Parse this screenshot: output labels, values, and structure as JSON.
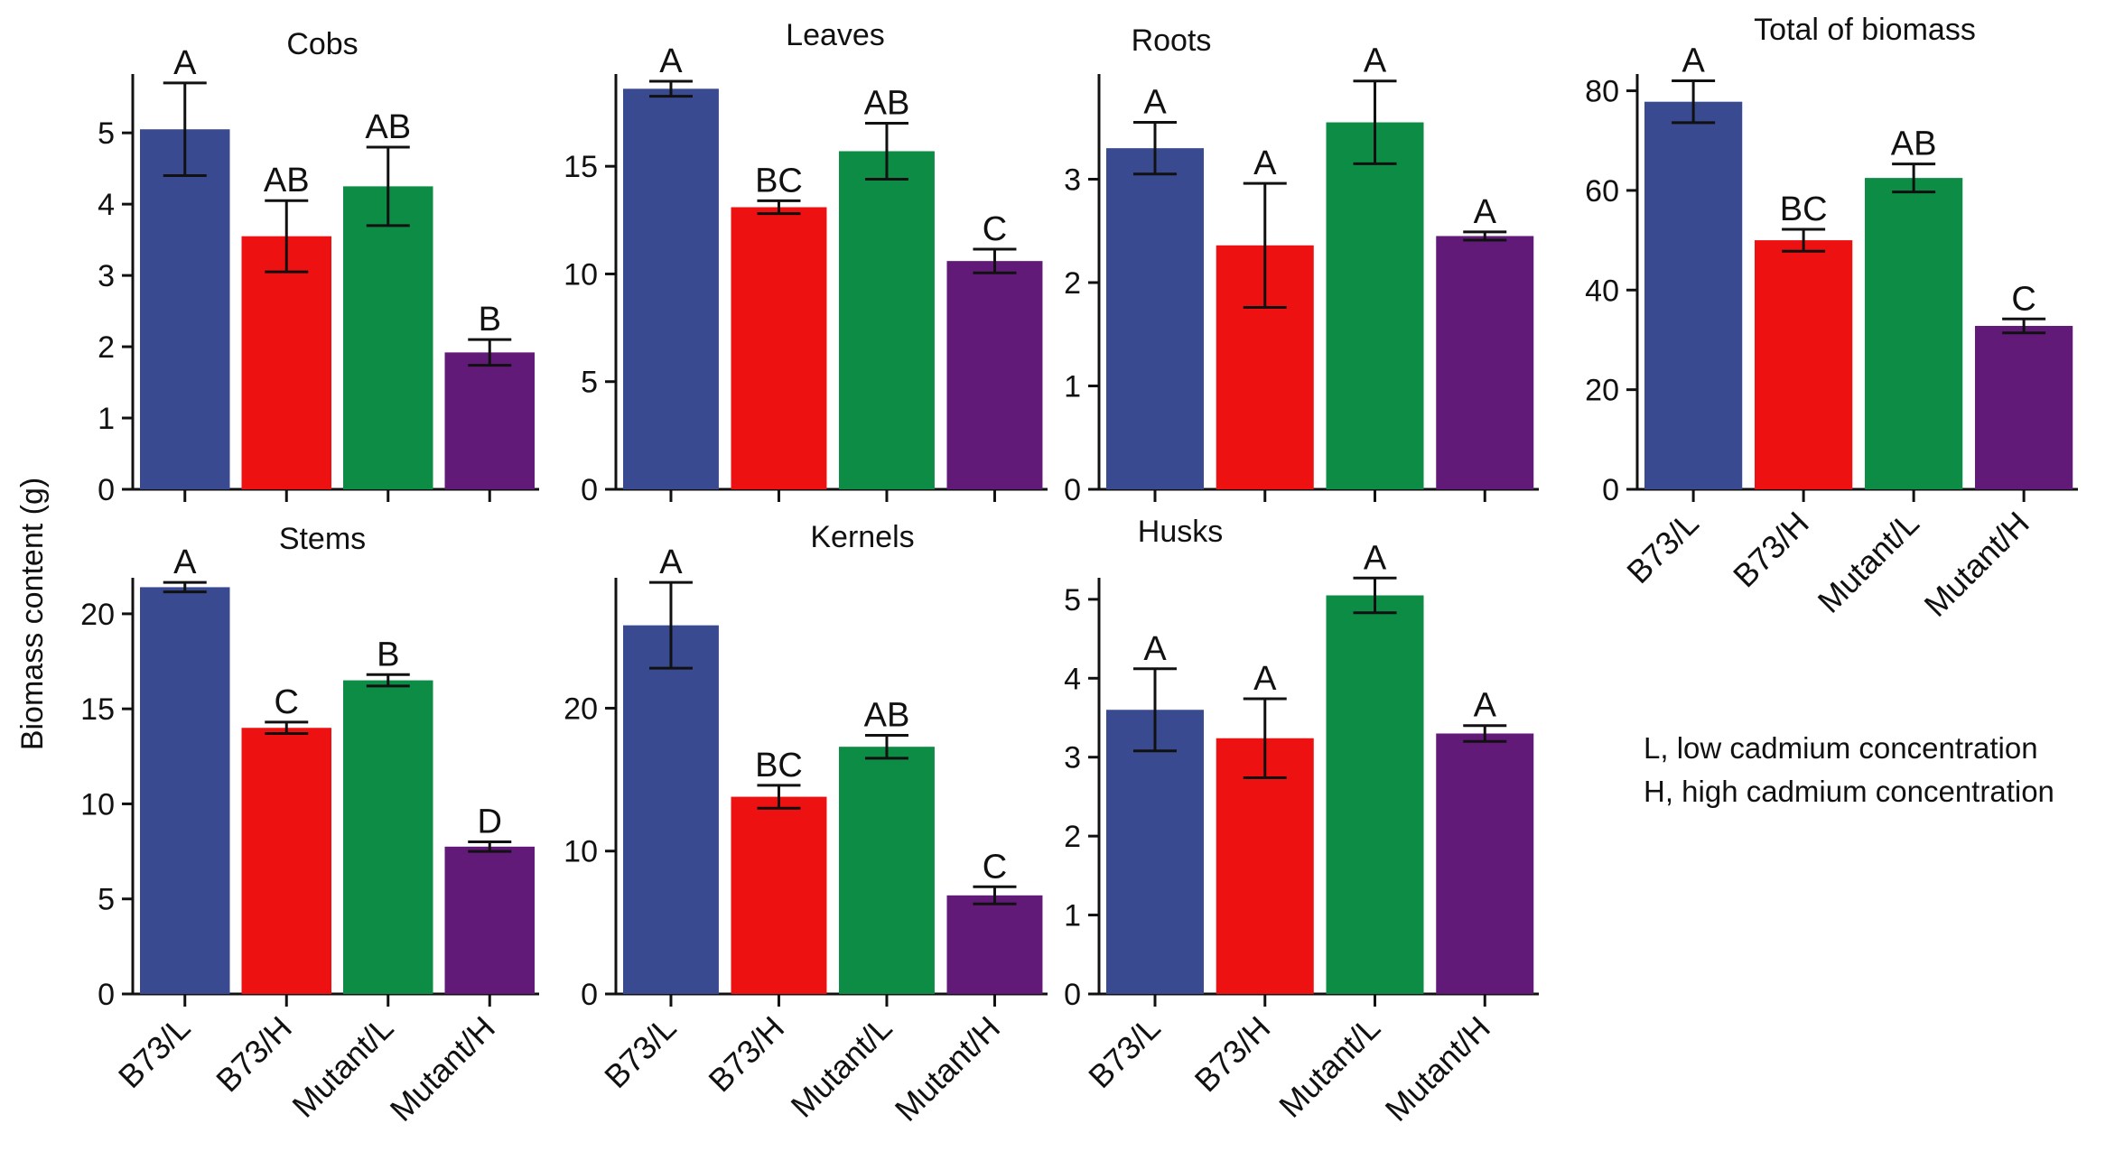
{
  "ylabel": "Biomass content (g)",
  "legend": [
    "L, low cadmium concentration",
    "H, high cadmium concentration"
  ],
  "colors": {
    "B73/L": "#3a4a91",
    "B73/H": "#ee1111",
    "Mutant/L": "#0c8c45",
    "Mutant/H": "#621a78"
  },
  "chart_data": [
    {
      "type": "bar",
      "title": "Cobs",
      "categories": [
        "B73/L",
        "B73/H",
        "Mutant/L",
        "Mutant/H"
      ],
      "values": [
        5.05,
        3.55,
        4.25,
        1.92
      ],
      "errors": [
        0.65,
        0.5,
        0.55,
        0.18
      ],
      "significance": [
        "A",
        "AB",
        "AB",
        "B"
      ],
      "ylim": [
        0,
        5.8
      ],
      "yticks": [
        0,
        1,
        2,
        3,
        4,
        5
      ],
      "show_xticklabels": false
    },
    {
      "type": "bar",
      "title": "Leaves",
      "categories": [
        "B73/L",
        "B73/H",
        "Mutant/L",
        "Mutant/H"
      ],
      "values": [
        18.6,
        13.1,
        15.7,
        10.6
      ],
      "errors": [
        0.35,
        0.3,
        1.3,
        0.55
      ],
      "significance": [
        "A",
        "BC",
        "AB",
        "C"
      ],
      "ylim": [
        0,
        19.2
      ],
      "yticks": [
        0,
        5,
        10,
        15
      ],
      "show_xticklabels": false
    },
    {
      "type": "bar",
      "title": "Roots",
      "categories": [
        "B73/L",
        "B73/H",
        "Mutant/L",
        "Mutant/H"
      ],
      "values": [
        3.3,
        2.36,
        3.55,
        2.45
      ],
      "errors": [
        0.25,
        0.6,
        0.4,
        0.04
      ],
      "significance": [
        "A",
        "A",
        "A",
        "A"
      ],
      "ylim": [
        0,
        4.0
      ],
      "yticks": [
        0,
        1,
        2,
        3
      ],
      "show_xticklabels": false
    },
    {
      "type": "bar",
      "title": "Total  of  biomass",
      "categories": [
        "B73/L",
        "B73/H",
        "Mutant/L",
        "Mutant/H"
      ],
      "values": [
        77.8,
        50.0,
        62.5,
        32.8
      ],
      "errors": [
        4.2,
        2.2,
        2.8,
        1.4
      ],
      "significance": [
        "A",
        "BC",
        "AB",
        "C"
      ],
      "ylim": [
        0,
        83
      ],
      "yticks": [
        0,
        20,
        40,
        60,
        80
      ],
      "show_xticklabels": true
    },
    {
      "type": "bar",
      "title": "Stems",
      "categories": [
        "B73/L",
        "B73/H",
        "Mutant/L",
        "Mutant/H"
      ],
      "values": [
        21.4,
        14.0,
        16.5,
        7.75
      ],
      "errors": [
        0.25,
        0.3,
        0.3,
        0.25
      ],
      "significance": [
        "A",
        "C",
        "B",
        "D"
      ],
      "ylim": [
        0,
        21.8
      ],
      "yticks": [
        0,
        5,
        10,
        15,
        20
      ],
      "show_xticklabels": true
    },
    {
      "type": "bar",
      "title": "Kernels",
      "categories": [
        "B73/L",
        "B73/H",
        "Mutant/L",
        "Mutant/H"
      ],
      "values": [
        25.8,
        13.8,
        17.3,
        6.9
      ],
      "errors": [
        3.0,
        0.8,
        0.8,
        0.6
      ],
      "significance": [
        "A",
        "BC",
        "AB",
        "C"
      ],
      "ylim": [
        0,
        29.0
      ],
      "yticks": [
        0,
        10,
        20
      ],
      "show_xticklabels": true
    },
    {
      "type": "bar",
      "title": "Husks",
      "categories": [
        "B73/L",
        "B73/H",
        "Mutant/L",
        "Mutant/H"
      ],
      "values": [
        3.6,
        3.24,
        5.05,
        3.3
      ],
      "errors": [
        0.52,
        0.5,
        0.22,
        0.1
      ],
      "significance": [
        "A",
        "A",
        "A",
        "A"
      ],
      "ylim": [
        0,
        5.25
      ],
      "yticks": [
        0,
        1,
        2,
        3,
        4,
        5
      ],
      "show_xticklabels": true
    }
  ]
}
